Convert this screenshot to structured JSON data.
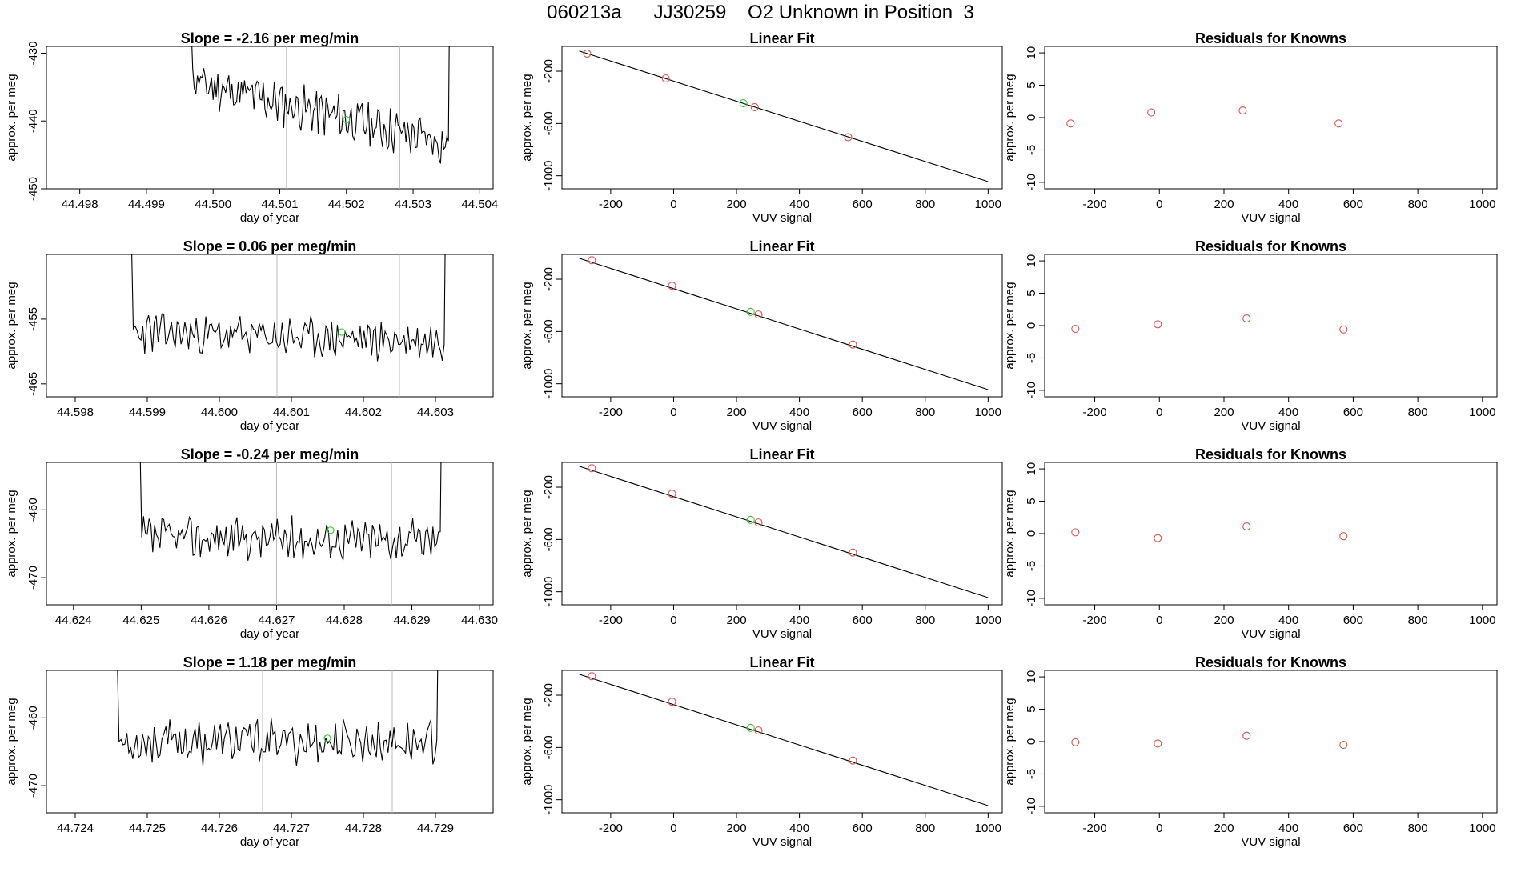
{
  "figure": {
    "title": "060213a      JJ30259    O2 Unknown in Position  3",
    "colors": {
      "trace": "#000000",
      "known": "#d9534f",
      "unknown": "#33cc33",
      "vline": "#bbbbbb",
      "axis": "#000000"
    }
  },
  "chart_data": [
    {
      "row": 1,
      "timeseries": {
        "type": "line",
        "title": "Slope =  -2.16  per meg/min",
        "xlabel": "day of year",
        "ylabel": "approx. per meg",
        "xlim": [
          44.4975,
          44.5042
        ],
        "ylim": [
          -450,
          -429
        ],
        "xticks": [
          44.498,
          44.499,
          44.5,
          44.501,
          44.502,
          44.503,
          44.504
        ],
        "xtick_labels": [
          "44.498",
          "44.499",
          "44.500",
          "44.501",
          "44.502",
          "44.503",
          "44.504"
        ],
        "yticks": [
          -450,
          -440,
          -430
        ],
        "ytick_labels": [
          "-450",
          "-440",
          "-430"
        ],
        "vlines": [
          44.5011,
          44.5028
        ],
        "t_start": 44.4996,
        "t_end": 44.5036,
        "base_start": -434.0,
        "base_end": -443.5,
        "amplitude": 2.8,
        "seed": 11,
        "unknown_point": [
          44.502,
          -439.8
        ]
      },
      "linfit": {
        "type": "scatter",
        "title": "Linear Fit",
        "xlabel": "VUV signal",
        "ylabel": "approx. per meg",
        "xlim": [
          -355,
          1045
        ],
        "ylim": [
          -1100,
          -10
        ],
        "xticks": [
          -200,
          0,
          200,
          400,
          600,
          800,
          1000
        ],
        "xtick_labels": [
          "-200",
          "0",
          "200",
          "400",
          "600",
          "800",
          "1000"
        ],
        "yticks": [
          -1000,
          -600,
          -200
        ],
        "ytick_labels": [
          "-1000",
          "-600",
          "-200"
        ],
        "line": [
          [
            -300,
            -45
          ],
          [
            1000,
            -1045
          ]
        ],
        "knowns": [
          [
            -275,
            -65
          ],
          [
            -25,
            -255
          ],
          [
            258,
            -475
          ],
          [
            555,
            -705
          ]
        ],
        "unknown": [
          [
            222,
            -445
          ]
        ]
      },
      "residuals": {
        "type": "scatter",
        "title": "Residuals for Knowns",
        "xlabel": "VUV signal",
        "ylabel": "approx. per meg",
        "xlim": [
          -355,
          1045
        ],
        "ylim": [
          -11,
          11
        ],
        "xticks": [
          -200,
          0,
          200,
          400,
          600,
          800,
          1000
        ],
        "xtick_labels": [
          "-200",
          "0",
          "200",
          "400",
          "600",
          "800",
          "1000"
        ],
        "yticks": [
          -10,
          -5,
          0,
          5,
          10
        ],
        "ytick_labels": [
          "-10",
          "-5",
          "0",
          "5",
          "10"
        ],
        "points": [
          [
            -275,
            -0.9
          ],
          [
            -25,
            0.8
          ],
          [
            258,
            1.1
          ],
          [
            555,
            -0.9
          ]
        ]
      }
    },
    {
      "row": 2,
      "timeseries": {
        "type": "line",
        "title": "Slope =  0.06  per meg/min",
        "xlabel": "day of year",
        "ylabel": "approx. per meg",
        "xlim": [
          44.5976,
          44.6038
        ],
        "ylim": [
          -467,
          -445
        ],
        "xticks": [
          44.598,
          44.599,
          44.6,
          44.601,
          44.602,
          44.603
        ],
        "xtick_labels": [
          "44.598",
          "44.599",
          "44.600",
          "44.601",
          "44.602",
          "44.603"
        ],
        "yticks": [
          -465,
          -455
        ],
        "ytick_labels": [
          "-465",
          "-455"
        ],
        "vlines": [
          44.6008,
          44.6025
        ],
        "t_start": 44.5987,
        "t_end": 44.6032,
        "base_start": -457.0,
        "base_end": -458.5,
        "amplitude": 2.6,
        "seed": 23,
        "unknown_point": [
          44.6017,
          -457.0
        ]
      },
      "linfit": {
        "type": "scatter",
        "title": "Linear Fit",
        "xlabel": "VUV signal",
        "ylabel": "approx. per meg",
        "xlim": [
          -355,
          1045
        ],
        "ylim": [
          -1100,
          -10
        ],
        "xticks": [
          -200,
          0,
          200,
          400,
          600,
          800,
          1000
        ],
        "xtick_labels": [
          "-200",
          "0",
          "200",
          "400",
          "600",
          "800",
          "1000"
        ],
        "yticks": [
          -1000,
          -600,
          -200
        ],
        "ytick_labels": [
          "-1000",
          "-600",
          "-200"
        ],
        "line": [
          [
            -300,
            -40
          ],
          [
            1000,
            -1045
          ]
        ],
        "knowns": [
          [
            -260,
            -55
          ],
          [
            -5,
            -250
          ],
          [
            270,
            -470
          ],
          [
            570,
            -700
          ]
        ],
        "unknown": [
          [
            245,
            -450
          ]
        ]
      },
      "residuals": {
        "type": "scatter",
        "title": "Residuals for Knowns",
        "xlabel": "VUV signal",
        "ylabel": "approx. per meg",
        "xlim": [
          -355,
          1045
        ],
        "ylim": [
          -11,
          11
        ],
        "xticks": [
          -200,
          0,
          200,
          400,
          600,
          800,
          1000
        ],
        "xtick_labels": [
          "-200",
          "0",
          "200",
          "400",
          "600",
          "800",
          "1000"
        ],
        "yticks": [
          -10,
          -5,
          0,
          5,
          10
        ],
        "ytick_labels": [
          "-10",
          "-5",
          "0",
          "5",
          "10"
        ],
        "points": [
          [
            -260,
            -0.5
          ],
          [
            -5,
            0.2
          ],
          [
            270,
            1.1
          ],
          [
            570,
            -0.6
          ]
        ]
      }
    },
    {
      "row": 3,
      "timeseries": {
        "type": "line",
        "title": "Slope =  -0.24  per meg/min",
        "xlabel": "day of year",
        "ylabel": "approx. per meg",
        "xlim": [
          44.6236,
          44.6302
        ],
        "ylim": [
          -474,
          -453
        ],
        "xticks": [
          44.624,
          44.625,
          44.626,
          44.627,
          44.628,
          44.629,
          44.63
        ],
        "xtick_labels": [
          "44.624",
          "44.625",
          "44.626",
          "44.627",
          "44.628",
          "44.629",
          "44.630"
        ],
        "yticks": [
          -470,
          -460
        ],
        "ytick_labels": [
          "-470",
          "-460"
        ],
        "vlines": [
          44.627,
          44.6287
        ],
        "t_start": 44.6249,
        "t_end": 44.6295,
        "base_start": -464.0,
        "base_end": -464.5,
        "amplitude": 2.6,
        "seed": 37,
        "unknown_point": [
          44.6278,
          -463.0
        ]
      },
      "linfit": {
        "type": "scatter",
        "title": "Linear Fit",
        "xlabel": "VUV signal",
        "ylabel": "approx. per meg",
        "xlim": [
          -355,
          1045
        ],
        "ylim": [
          -1100,
          -10
        ],
        "xticks": [
          -200,
          0,
          200,
          400,
          600,
          800,
          1000
        ],
        "xtick_labels": [
          "-200",
          "0",
          "200",
          "400",
          "600",
          "800",
          "1000"
        ],
        "yticks": [
          -1000,
          -600,
          -200
        ],
        "ytick_labels": [
          "-1000",
          "-600",
          "-200"
        ],
        "line": [
          [
            -300,
            -40
          ],
          [
            1000,
            -1045
          ]
        ],
        "knowns": [
          [
            -260,
            -55
          ],
          [
            -5,
            -250
          ],
          [
            270,
            -470
          ],
          [
            570,
            -700
          ]
        ],
        "unknown": [
          [
            245,
            -450
          ]
        ]
      },
      "residuals": {
        "type": "scatter",
        "title": "Residuals for Knowns",
        "xlabel": "VUV signal",
        "ylabel": "approx. per meg",
        "xlim": [
          -355,
          1045
        ],
        "ylim": [
          -11,
          11
        ],
        "xticks": [
          -200,
          0,
          200,
          400,
          600,
          800,
          1000
        ],
        "xtick_labels": [
          "-200",
          "0",
          "200",
          "400",
          "600",
          "800",
          "1000"
        ],
        "yticks": [
          -10,
          -5,
          0,
          5,
          10
        ],
        "ytick_labels": [
          "-10",
          "-5",
          "0",
          "5",
          "10"
        ],
        "points": [
          [
            -260,
            0.2
          ],
          [
            -5,
            -0.7
          ],
          [
            270,
            1.1
          ],
          [
            570,
            -0.4
          ]
        ]
      }
    },
    {
      "row": 4,
      "timeseries": {
        "type": "line",
        "title": "Slope =  1.18  per meg/min",
        "xlabel": "day of year",
        "ylabel": "approx. per meg",
        "xlim": [
          44.7236,
          44.7298
        ],
        "ylim": [
          -474,
          -453
        ],
        "xticks": [
          44.724,
          44.725,
          44.726,
          44.727,
          44.728,
          44.729
        ],
        "xtick_labels": [
          "44.724",
          "44.725",
          "44.726",
          "44.727",
          "44.728",
          "44.729"
        ],
        "yticks": [
          -470,
          -460
        ],
        "ytick_labels": [
          "-470",
          "-460"
        ],
        "vlines": [
          44.7266,
          44.7284
        ],
        "t_start": 44.7245,
        "t_end": 44.7291,
        "base_start": -463.5,
        "base_end": -463.5,
        "amplitude": 2.7,
        "seed": 53,
        "unknown_point": [
          44.7275,
          -463.0
        ]
      },
      "linfit": {
        "type": "scatter",
        "title": "Linear Fit",
        "xlabel": "VUV signal",
        "ylabel": "approx. per meg",
        "xlim": [
          -355,
          1045
        ],
        "ylim": [
          -1100,
          -10
        ],
        "xticks": [
          -200,
          0,
          200,
          400,
          600,
          800,
          1000
        ],
        "xtick_labels": [
          "-200",
          "0",
          "200",
          "400",
          "600",
          "800",
          "1000"
        ],
        "yticks": [
          -1000,
          -600,
          -200
        ],
        "ytick_labels": [
          "-1000",
          "-600",
          "-200"
        ],
        "line": [
          [
            -300,
            -40
          ],
          [
            1000,
            -1045
          ]
        ],
        "knowns": [
          [
            -260,
            -55
          ],
          [
            -5,
            -250
          ],
          [
            270,
            -470
          ],
          [
            570,
            -700
          ]
        ],
        "unknown": [
          [
            245,
            -450
          ]
        ]
      },
      "residuals": {
        "type": "scatter",
        "title": "Residuals for Knowns",
        "xlabel": "VUV signal",
        "ylabel": "approx. per meg",
        "xlim": [
          -355,
          1045
        ],
        "ylim": [
          -11,
          11
        ],
        "xticks": [
          -200,
          0,
          200,
          400,
          600,
          800,
          1000
        ],
        "xtick_labels": [
          "-200",
          "0",
          "200",
          "400",
          "600",
          "800",
          "1000"
        ],
        "yticks": [
          -10,
          -5,
          0,
          5,
          10
        ],
        "ytick_labels": [
          "-10",
          "-5",
          "0",
          "5",
          "10"
        ],
        "points": [
          [
            -260,
            -0.1
          ],
          [
            -5,
            -0.3
          ],
          [
            270,
            0.9
          ],
          [
            570,
            -0.5
          ]
        ]
      }
    }
  ]
}
